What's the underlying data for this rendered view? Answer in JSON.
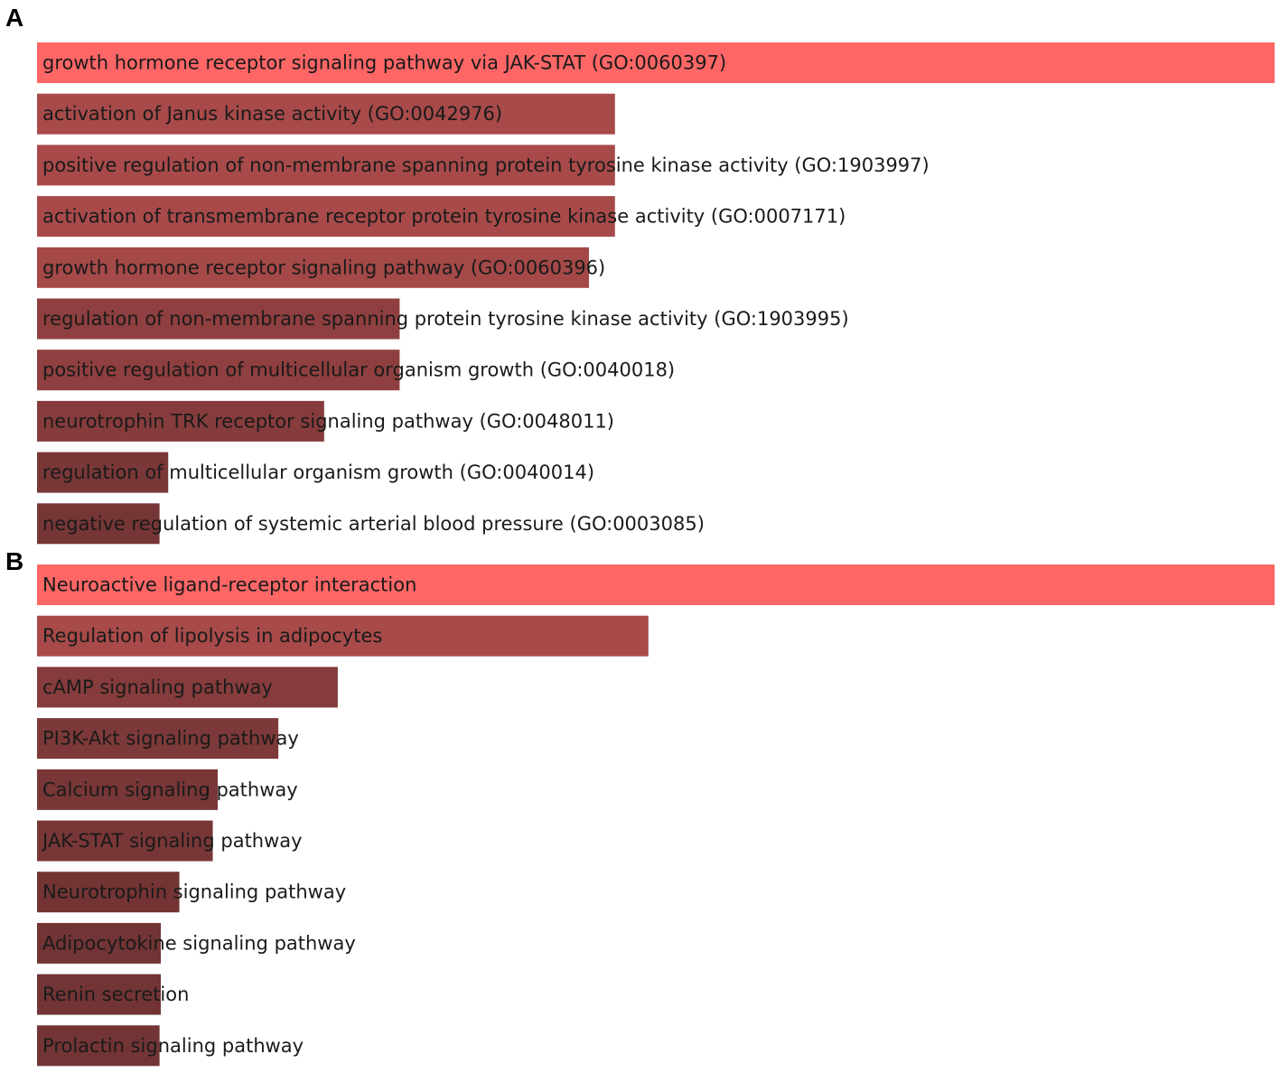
{
  "chart_data": [
    {
      "type": "bar",
      "orientation": "horizontal",
      "panel": "A",
      "max_value": 1.0,
      "colors": [
        "#ff6666",
        "#a84a4a",
        "#a84a4a",
        "#a84a4a",
        "#a44848",
        "#8f3f3f",
        "#8f3f3f",
        "#863c3c",
        "#793737",
        "#773636"
      ],
      "categories": [
        "growth hormone receptor signaling pathway via JAK-STAT (GO:0060397)",
        "activation of Janus kinase activity (GO:0042976)",
        "positive regulation of non-membrane spanning protein tyrosine kinase activity (GO:1903997)",
        "activation of transmembrane receptor protein tyrosine kinase activity (GO:0007171)",
        "growth hormone receptor signaling pathway (GO:0060396)",
        "regulation of non-membrane spanning protein tyrosine kinase activity (GO:1903995)",
        "positive regulation of multicellular organism growth (GO:0040018)",
        "neurotrophin TRK receptor signaling pathway (GO:0048011)",
        "regulation of multicellular organism growth (GO:0040014)",
        "negative regulation of systemic arterial blood pressure (GO:0003085)"
      ],
      "values": [
        1.0,
        0.467,
        0.467,
        0.467,
        0.446,
        0.293,
        0.293,
        0.232,
        0.106,
        0.099
      ]
    },
    {
      "type": "bar",
      "orientation": "horizontal",
      "panel": "B",
      "max_value": 1.0,
      "colors": [
        "#ff6666",
        "#a84a4a",
        "#863c3c",
        "#7d3939",
        "#783636",
        "#783636",
        "#743434",
        "#723434",
        "#723434",
        "#723434"
      ],
      "categories": [
        "Neuroactive ligand-receptor interaction",
        "Regulation of lipolysis in adipocytes",
        "cAMP signaling pathway",
        "PI3K-Akt signaling pathway",
        "Calcium signaling pathway",
        "JAK-STAT signaling pathway",
        "Neurotrophin signaling pathway",
        "Adipocytokine signaling pathway",
        "Renin secretion",
        "Prolactin signaling pathway"
      ],
      "values": [
        1.0,
        0.494,
        0.243,
        0.195,
        0.146,
        0.142,
        0.115,
        0.1,
        0.1,
        0.099
      ]
    }
  ],
  "panels": {
    "a_label": "A",
    "b_label": "B"
  }
}
